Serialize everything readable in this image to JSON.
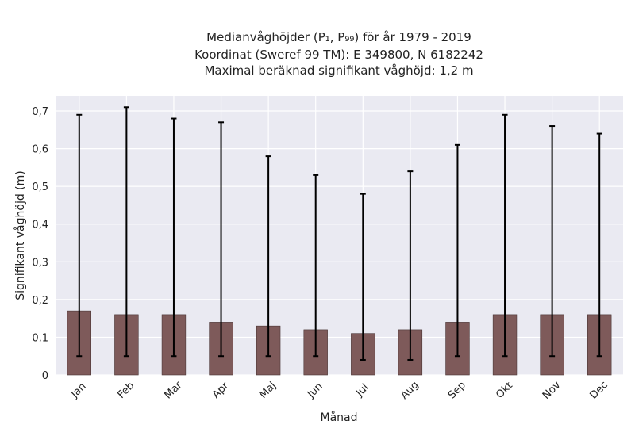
{
  "chart_data": {
    "type": "bar",
    "title": "Medianvåghöjder (P₁, P₉₉) för år 1979 - 2019",
    "subtitle_lines": [
      "Koordinat (Sweref 99 TM): E 349800, N 6182242",
      "Maximal beräknad signifikant våghöjd: 1,2 m"
    ],
    "xlabel": "Månad",
    "ylabel": "Signifikant våghöjd (m)",
    "categories": [
      "Jan",
      "Feb",
      "Mar",
      "Apr",
      "Maj",
      "Jun",
      "Jul",
      "Aug",
      "Sep",
      "Okt",
      "Nov",
      "Dec"
    ],
    "values": [
      0.17,
      0.16,
      0.16,
      0.14,
      0.13,
      0.12,
      0.11,
      0.12,
      0.14,
      0.16,
      0.16,
      0.16
    ],
    "error_low": [
      0.05,
      0.05,
      0.05,
      0.05,
      0.05,
      0.05,
      0.04,
      0.04,
      0.05,
      0.05,
      0.05,
      0.05
    ],
    "error_high": [
      0.69,
      0.71,
      0.68,
      0.67,
      0.58,
      0.53,
      0.48,
      0.54,
      0.61,
      0.69,
      0.66,
      0.64
    ],
    "ylim": [
      0,
      0.74
    ],
    "yticks": [
      0,
      0.1,
      0.2,
      0.3,
      0.4,
      0.5,
      0.6,
      0.7
    ],
    "ytick_labels": [
      "0",
      "0,1",
      "0,2",
      "0,3",
      "0,4",
      "0,5",
      "0,6",
      "0,7"
    ],
    "grid": true,
    "bar_color": "#7e5a5a",
    "plot_background": "#eaeaf2",
    "error_bar_color": "#000000"
  }
}
